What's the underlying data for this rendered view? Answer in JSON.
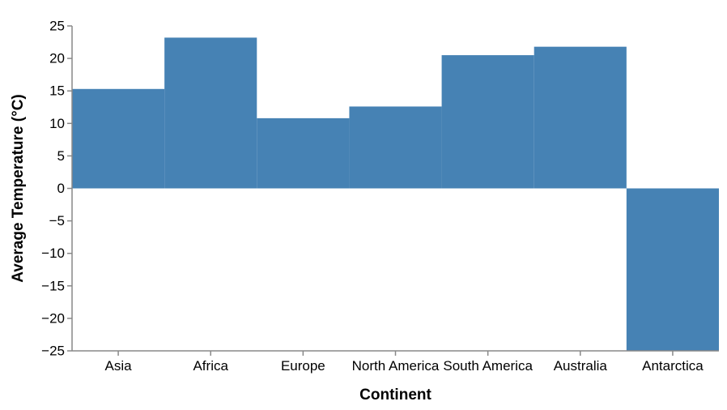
{
  "chart_data": {
    "type": "bar",
    "xlabel": "Continent",
    "ylabel": "Average Temperature (°C)",
    "categories": [
      "Asia",
      "Africa",
      "Europe",
      "North America",
      "South America",
      "Australia",
      "Antarctica"
    ],
    "values": [
      15.3,
      23.2,
      10.8,
      12.6,
      20.5,
      21.8,
      -25
    ],
    "ylim": [
      -25,
      25
    ],
    "yticks": [
      "−25",
      "−20",
      "−15",
      "−10",
      "−5",
      "0",
      "5",
      "10",
      "15",
      "20",
      "25"
    ],
    "grid": false,
    "bar_color": "#4682b4"
  }
}
